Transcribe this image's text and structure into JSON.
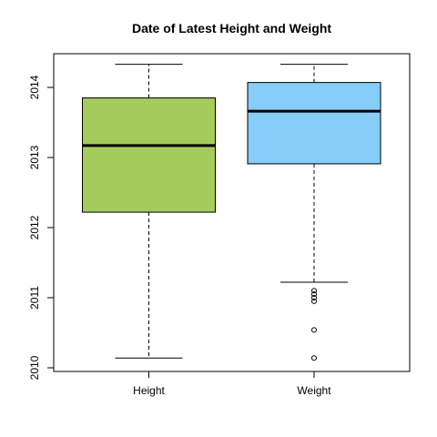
{
  "chart_data": {
    "type": "box",
    "title": "Date of Latest Height and Weight",
    "xlabel": "",
    "ylabel": "",
    "ylim": [
      2010,
      2014.35
    ],
    "y_ticks": [
      2010,
      2011,
      2012,
      2013,
      2014
    ],
    "y_tick_labels": [
      "2010",
      "2011",
      "2012",
      "2013",
      "2014"
    ],
    "categories": [
      "Height",
      "Weight"
    ],
    "boxes": [
      {
        "name": "Height",
        "color": "#a3cc5c",
        "whisker_low": 2010.14,
        "q1": 2012.22,
        "median": 2013.17,
        "q3": 2013.85,
        "whisker_high": 2014.33,
        "outliers": []
      },
      {
        "name": "Weight",
        "color": "#87cdf9",
        "whisker_low": 2011.22,
        "q1": 2012.91,
        "median": 2013.66,
        "q3": 2014.07,
        "whisker_high": 2014.33,
        "outliers": [
          2011.1,
          2011.05,
          2011.0,
          2010.95,
          2010.54,
          2010.14
        ]
      }
    ],
    "grid": false,
    "legend": "none"
  }
}
